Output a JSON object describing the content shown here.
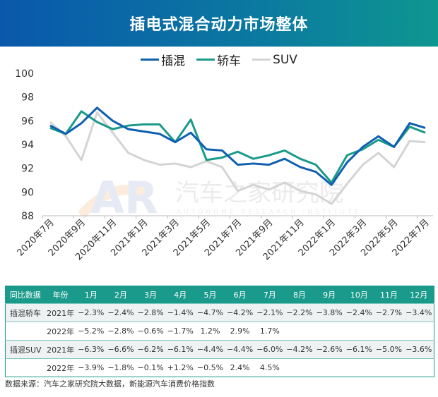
{
  "title": "插电式混合动力市场整体",
  "legend": [
    {
      "label": "插混",
      "color": "#1060b0"
    },
    {
      "label": "轿车",
      "color": "#1a9a8a"
    },
    {
      "label": "SUV",
      "color": "#d4d4d4"
    }
  ],
  "watermark": {
    "logo": "AR",
    "text": "汽车之家研究院",
    "subtext": "AUTOHOME RESEARCH INSTITUTE"
  },
  "chart_data": {
    "type": "line",
    "ylim": [
      88,
      100
    ],
    "yticks": [
      88,
      90,
      92,
      94,
      96,
      98,
      100
    ],
    "grid": false,
    "legend_position": "top-center",
    "x": [
      "2020-07",
      "2020-08",
      "2020-09",
      "2020-10",
      "2020-11",
      "2020-12",
      "2021-01",
      "2021-02",
      "2021-03",
      "2021-04",
      "2021-05",
      "2021-06",
      "2021-07",
      "2021-08",
      "2021-09",
      "2021-10",
      "2021-11",
      "2021-12",
      "2022-01",
      "2022-02",
      "2022-03",
      "2022-04",
      "2022-05",
      "2022-06",
      "2022-07"
    ],
    "xtick_labels": [
      "2020年7月",
      "2020年9月",
      "2020年11月",
      "2021年1月",
      "2021年3月",
      "2021年5月",
      "2021年7月",
      "2021年9月",
      "2021年11月",
      "2022年1月",
      "2022年3月",
      "2022年5月",
      "2022年7月"
    ],
    "series": [
      {
        "name": "插混",
        "color": "#1060b0",
        "values": [
          95.6,
          94.9,
          95.8,
          97.1,
          96.0,
          95.3,
          95.1,
          94.9,
          94.2,
          95.0,
          93.6,
          93.5,
          92.3,
          92.4,
          92.3,
          92.8,
          92.1,
          91.7,
          90.6,
          92.5,
          93.8,
          94.7,
          93.8,
          95.8,
          95.4
        ]
      },
      {
        "name": "轿车",
        "color": "#1a9a8a",
        "values": [
          95.4,
          94.9,
          96.8,
          95.9,
          95.3,
          95.6,
          95.7,
          95.7,
          94.2,
          96.1,
          92.7,
          92.9,
          93.4,
          92.8,
          93.1,
          93.5,
          92.8,
          92.3,
          90.8,
          93.1,
          93.6,
          94.4,
          93.8,
          95.5,
          95.0
        ]
      },
      {
        "name": "SUV",
        "color": "#d4d4d4",
        "values": [
          95.9,
          94.7,
          92.7,
          96.7,
          95.0,
          93.3,
          92.7,
          92.3,
          92.4,
          92.1,
          92.6,
          92.1,
          90.1,
          90.6,
          90.2,
          90.8,
          90.1,
          89.8,
          89.0,
          90.7,
          92.3,
          93.3,
          92.1,
          94.3,
          94.2
        ]
      }
    ]
  },
  "table": {
    "headers": [
      "同比数据",
      "年份",
      "1月",
      "2月",
      "3月",
      "4月",
      "5月",
      "6月",
      "7月",
      "8月",
      "9月",
      "10月",
      "11月",
      "12月"
    ],
    "rows": [
      {
        "cat": "插混轿车",
        "year": "2021年",
        "values": [
          "−2.3%",
          "−2.4%",
          "−2.8%",
          "−1.4%",
          "−4.7%",
          "−4.2%",
          "−2.1%",
          "−2.2%",
          "−3.8%",
          "−2.4%",
          "−2.7%",
          "−3.4%"
        ]
      },
      {
        "cat": "",
        "year": "2022年",
        "values": [
          "−5.2%",
          "−2.8%",
          "−0.6%",
          "−1.7%",
          "1.2%",
          "2.9%",
          "1.7%",
          "",
          "",
          "",
          "",
          ""
        ]
      },
      {
        "cat": "插混SUV",
        "year": "2021年",
        "values": [
          "−6.3%",
          "−6.6%",
          "−6.2%",
          "−6.1%",
          "−4.4%",
          "−4.4%",
          "−6.0%",
          "−4.2%",
          "−2.6%",
          "−6.1%",
          "−5.0%",
          "−3.6%"
        ]
      },
      {
        "cat": "",
        "year": "2022年",
        "values": [
          "−3.9%",
          "−1.8%",
          "−0.1%",
          "+1.2%",
          "−0.5%",
          "2.4%",
          "4.5%",
          "",
          "",
          "",
          "",
          ""
        ]
      }
    ]
  },
  "source": "数据来源：汽车之家研究院大数据，新能源汽车消费价格指数"
}
